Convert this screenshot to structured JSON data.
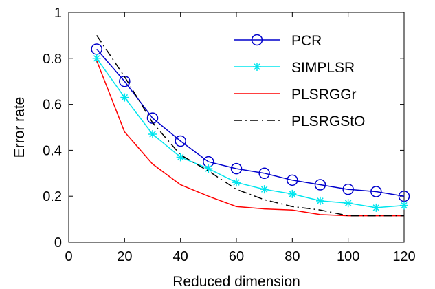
{
  "chart_data": {
    "type": "line",
    "title": "",
    "xlabel": "Reduced dimension",
    "ylabel": "Error rate",
    "xlim": [
      0,
      120
    ],
    "ylim": [
      0,
      1
    ],
    "xticks": [
      0,
      20,
      40,
      60,
      80,
      100,
      120
    ],
    "yticks": [
      0,
      0.2,
      0.4,
      0.6,
      0.8,
      1
    ],
    "ytick_labels": [
      "0",
      "0.2",
      "0.4",
      "0.6",
      "0.8",
      "1"
    ],
    "grid": false,
    "legend_position": "top-right",
    "series": [
      {
        "name": "PCR",
        "color": "#0000cc",
        "line_style": "solid",
        "marker": "circle",
        "x": [
          10,
          20,
          30,
          40,
          50,
          60,
          70,
          80,
          90,
          100,
          110,
          120
        ],
        "values": [
          0.84,
          0.7,
          0.54,
          0.44,
          0.35,
          0.32,
          0.3,
          0.27,
          0.25,
          0.23,
          0.22,
          0.2
        ]
      },
      {
        "name": "SIMPLSR",
        "color": "#00e5ee",
        "line_style": "solid",
        "marker": "asterisk",
        "x": [
          10,
          20,
          30,
          40,
          50,
          60,
          70,
          80,
          90,
          100,
          110,
          120
        ],
        "values": [
          0.8,
          0.63,
          0.47,
          0.37,
          0.32,
          0.26,
          0.23,
          0.21,
          0.18,
          0.17,
          0.15,
          0.16
        ]
      },
      {
        "name": "PLSRGGr",
        "color": "#ff0000",
        "line_style": "solid",
        "marker": "none",
        "x": [
          10,
          20,
          30,
          40,
          50,
          60,
          70,
          80,
          90,
          100,
          110,
          120
        ],
        "values": [
          0.79,
          0.48,
          0.34,
          0.25,
          0.2,
          0.155,
          0.145,
          0.14,
          0.12,
          0.115,
          0.115,
          0.115
        ]
      },
      {
        "name": "PLSRGStO",
        "color": "#000000",
        "line_style": "dashdot",
        "marker": "none",
        "x": [
          10,
          20,
          30,
          40,
          50,
          60,
          70,
          80,
          90,
          100,
          110,
          120
        ],
        "values": [
          0.9,
          0.72,
          0.52,
          0.38,
          0.31,
          0.23,
          0.185,
          0.155,
          0.14,
          0.115,
          0.115,
          0.115
        ]
      }
    ]
  }
}
